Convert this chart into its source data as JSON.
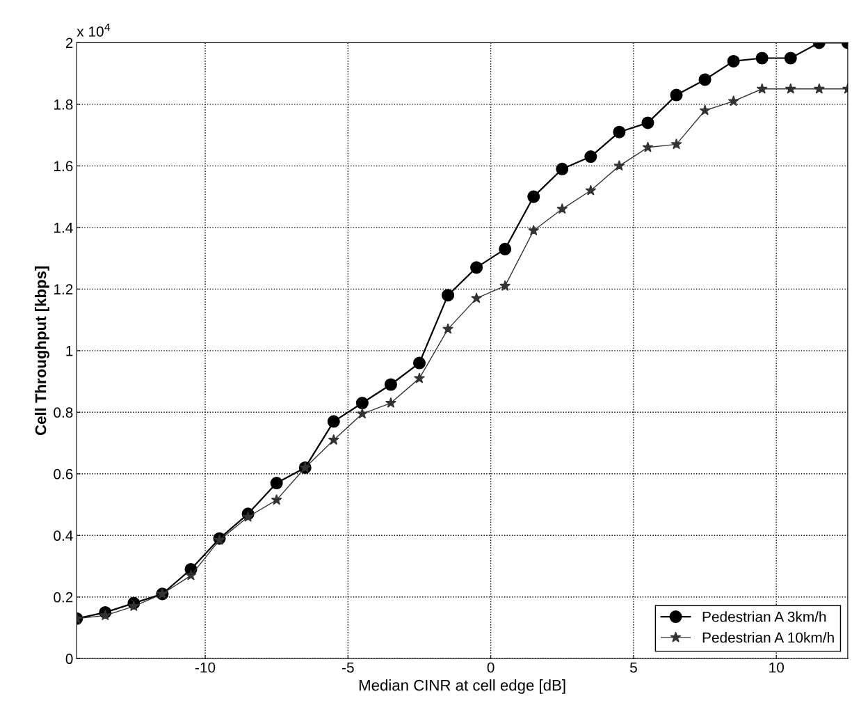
{
  "chart_data": {
    "type": "line",
    "xlabel": "Median CINR at cell edge [dB]",
    "ylabel": "Cell Throughput [kbps]",
    "annotations": [
      "x 10$^{4}$"
    ],
    "x": [
      -14.5,
      -13.5,
      -12.5,
      -11.5,
      -10.5,
      -9.5,
      -8.5,
      -7.5,
      -6.5,
      -5.5,
      -4.5,
      -3.5,
      -2.5,
      -1.5,
      -0.5,
      0.5,
      1.5,
      2.5,
      3.5,
      4.5,
      5.5,
      6.5,
      7.5,
      8.5,
      9.5,
      10.5,
      11.5,
      12.5
    ],
    "series": [
      {
        "name": "Pedestrian A 3km/h",
        "color": "#000000",
        "marker": "circle",
        "values": [
          0.13,
          0.15,
          0.18,
          0.21,
          0.29,
          0.39,
          0.47,
          0.57,
          0.62,
          0.77,
          0.83,
          0.89,
          0.96,
          1.18,
          1.27,
          1.33,
          1.5,
          1.59,
          1.63,
          1.71,
          1.74,
          1.83,
          1.88,
          1.94,
          1.95,
          1.95,
          2.0,
          2.0
        ]
      },
      {
        "name": "Pedestrian A 10km/h",
        "color": "#333333",
        "marker": "star",
        "values": [
          0.13,
          0.14,
          0.17,
          0.21,
          0.27,
          0.385,
          0.46,
          0.515,
          0.62,
          0.71,
          0.795,
          0.83,
          0.91,
          1.07,
          1.17,
          1.21,
          1.39,
          1.46,
          1.52,
          1.6,
          1.66,
          1.67,
          1.78,
          1.81,
          1.85,
          1.85,
          1.85,
          1.85
        ]
      }
    ],
    "xlim": [
      -14.5,
      12.5
    ],
    "xticks": [
      -10,
      -5,
      0,
      5,
      10
    ],
    "ylim": [
      0,
      2
    ],
    "yticks": [
      0,
      0.2,
      0.4,
      0.6,
      0.8,
      1,
      1.2,
      1.4,
      1.6,
      1.8,
      2
    ],
    "grid": true,
    "line_style": "solid",
    "legend": "bottom right"
  }
}
